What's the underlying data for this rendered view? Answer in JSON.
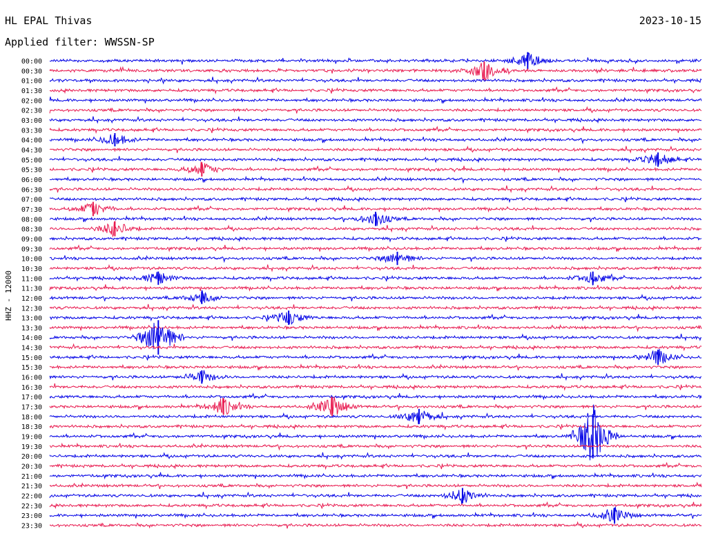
{
  "station": "HL EPAL Thivas",
  "date": "2023-10-15",
  "filter_label": "Applied filter: WWSSN-SP",
  "channel_label": "HHZ - 12000",
  "colors": {
    "even_trace": "#0000e6",
    "odd_trace": "#e8184e",
    "text": "#000000"
  },
  "chart_data": {
    "type": "line",
    "title": "HL EPAL Thivas",
    "subtitle": "Applied filter: WWSSN-SP",
    "ylabel": "HHZ - 12000",
    "xlabel": "",
    "row_interval_minutes": 30,
    "rows": [
      "00:00",
      "00:30",
      "01:00",
      "01:30",
      "02:00",
      "02:30",
      "03:00",
      "03:30",
      "04:00",
      "04:30",
      "05:00",
      "05:30",
      "06:00",
      "06:30",
      "07:00",
      "07:30",
      "08:00",
      "08:30",
      "09:00",
      "09:30",
      "10:00",
      "10:30",
      "11:00",
      "11:30",
      "12:00",
      "12:30",
      "13:00",
      "13:30",
      "14:00",
      "14:30",
      "15:00",
      "15:30",
      "16:00",
      "16:30",
      "17:00",
      "17:30",
      "18:00",
      "18:30",
      "19:00",
      "19:30",
      "20:00",
      "20:30",
      "21:00",
      "21:30",
      "22:00",
      "22:30",
      "23:00",
      "23:30"
    ],
    "row_colors": [
      "blue",
      "red"
    ],
    "events": [
      {
        "row": "00:00",
        "minute": 22,
        "amplitude": 1.2
      },
      {
        "row": "00:30",
        "minute": 20,
        "amplitude": 1.3
      },
      {
        "row": "04:00",
        "minute": 3,
        "amplitude": 0.8
      },
      {
        "row": "05:00",
        "minute": 28,
        "amplitude": 0.9
      },
      {
        "row": "05:30",
        "minute": 7,
        "amplitude": 0.9
      },
      {
        "row": "07:30",
        "minute": 2,
        "amplitude": 0.9
      },
      {
        "row": "08:00",
        "minute": 15,
        "amplitude": 0.9
      },
      {
        "row": "08:30",
        "minute": 3,
        "amplitude": 1.0
      },
      {
        "row": "10:00",
        "minute": 16,
        "amplitude": 0.8
      },
      {
        "row": "11:00",
        "minute": 5,
        "amplitude": 0.8
      },
      {
        "row": "11:00",
        "minute": 25,
        "amplitude": 0.8
      },
      {
        "row": "12:00",
        "minute": 7,
        "amplitude": 0.7
      },
      {
        "row": "13:00",
        "minute": 11,
        "amplitude": 0.9
      },
      {
        "row": "14:00",
        "minute": 5,
        "amplitude": 3.0
      },
      {
        "row": "15:00",
        "minute": 28,
        "amplitude": 1.0
      },
      {
        "row": "16:00",
        "minute": 7,
        "amplitude": 0.8
      },
      {
        "row": "17:30",
        "minute": 8,
        "amplitude": 1.1
      },
      {
        "row": "17:30",
        "minute": 13,
        "amplitude": 1.4
      },
      {
        "row": "18:00",
        "minute": 17,
        "amplitude": 1.0
      },
      {
        "row": "19:00",
        "minute": 25,
        "amplitude": 4.0
      },
      {
        "row": "22:00",
        "minute": 19,
        "amplitude": 1.0
      },
      {
        "row": "23:00",
        "minute": 26,
        "amplitude": 1.0
      }
    ]
  }
}
